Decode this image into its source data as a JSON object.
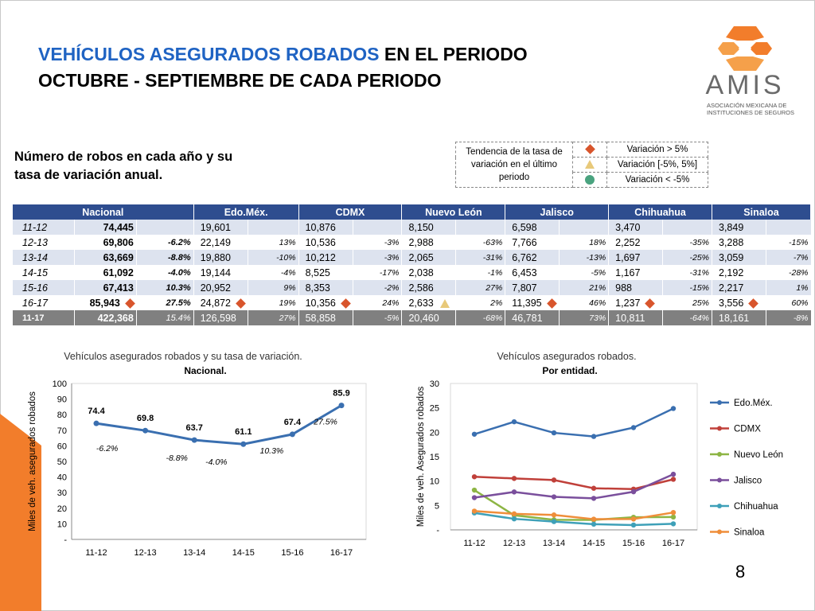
{
  "title": {
    "blue": "VEHÍCULOS ASEGURADOS ROBADOS",
    "rest": " EN EL PERIODO",
    "line2": "OCTUBRE - SEPTIEMBRE DE CADA PERIODO"
  },
  "logo": {
    "name": "AMIS",
    "sub1": "ASOCIACIÓN MEXICANA DE",
    "sub2": "INSTITUCIONES DE SEGUROS",
    "colors": [
      "#f27d2b",
      "#f5a04a"
    ]
  },
  "subtitle": {
    "line1": "Número de robos en cada año y su",
    "line2": "tasa de variación anual."
  },
  "legend": {
    "description": "Tendencia de la tasa de variación en el último periodo",
    "desc_lines": [
      "Tendencia de la tasa de",
      "variación en el último",
      "periodo"
    ],
    "items": [
      {
        "label": "Variación > 5%",
        "shape": "diamond",
        "color": "#d8552c"
      },
      {
        "label": "Variación [-5%, 5%]",
        "shape": "triangle",
        "color": "#e8c97a"
      },
      {
        "label": "Variación < -5%",
        "shape": "circle",
        "color": "#4aa37f"
      }
    ]
  },
  "table": {
    "headers": [
      "Nacional",
      "Edo.Méx.",
      "CDMX",
      "Nuevo León",
      "Jalisco",
      "Chihuahua",
      "Sinaloa"
    ],
    "rows": [
      {
        "year": "11-12",
        "nac": "74,445",
        "nac_rate": "",
        "mark": "",
        "cells": [
          [
            "19,601",
            ""
          ],
          [
            "10,876",
            ""
          ],
          [
            "8,150",
            ""
          ],
          [
            "6,598",
            ""
          ],
          [
            "3,470",
            ""
          ],
          [
            "3,849",
            ""
          ]
        ]
      },
      {
        "year": "12-13",
        "nac": "69,806",
        "nac_rate": "-6.2%",
        "mark": "",
        "cells": [
          [
            "22,149",
            "13%"
          ],
          [
            "10,536",
            "-3%"
          ],
          [
            "2,988",
            "-63%"
          ],
          [
            "7,766",
            "18%"
          ],
          [
            "2,252",
            "-35%"
          ],
          [
            "3,288",
            "-15%"
          ]
        ]
      },
      {
        "year": "13-14",
        "nac": "63,669",
        "nac_rate": "-8.8%",
        "mark": "",
        "cells": [
          [
            "19,880",
            "-10%"
          ],
          [
            "10,212",
            "-3%"
          ],
          [
            "2,065",
            "-31%"
          ],
          [
            "6,762",
            "-13%"
          ],
          [
            "1,697",
            "-25%"
          ],
          [
            "3,059",
            "-7%"
          ]
        ]
      },
      {
        "year": "14-15",
        "nac": "61,092",
        "nac_rate": "-4.0%",
        "mark": "",
        "cells": [
          [
            "19,144",
            "-4%"
          ],
          [
            "8,525",
            "-17%"
          ],
          [
            "2,038",
            "-1%"
          ],
          [
            "6,453",
            "-5%"
          ],
          [
            "1,167",
            "-31%"
          ],
          [
            "2,192",
            "-28%"
          ]
        ]
      },
      {
        "year": "15-16",
        "nac": "67,413",
        "nac_rate": "10.3%",
        "mark": "",
        "cells": [
          [
            "20,952",
            "9%"
          ],
          [
            "8,353",
            "-2%"
          ],
          [
            "2,586",
            "27%"
          ],
          [
            "7,807",
            "21%"
          ],
          [
            "988",
            "-15%"
          ],
          [
            "2,217",
            "1%"
          ]
        ]
      },
      {
        "year": "16-17",
        "nac": "85,943",
        "nac_rate": "27.5%",
        "mark": "diamond",
        "cells": [
          [
            "24,872",
            "19%"
          ],
          [
            "10,356",
            "24%"
          ],
          [
            "2,633",
            "2%"
          ],
          [
            "11,395",
            "46%"
          ],
          [
            "1,237",
            "25%"
          ],
          [
            "3,556",
            "60%"
          ]
        ],
        "marks": [
          "diamond",
          "diamond",
          "triangle",
          "diamond",
          "diamond",
          "diamond"
        ]
      },
      {
        "year": "11-17",
        "nac": "422,368",
        "nac_rate": "15.4%",
        "mark": "",
        "cells": [
          [
            "126,598",
            "27%"
          ],
          [
            "58,858",
            "-5%"
          ],
          [
            "20,460",
            "-68%"
          ],
          [
            "46,781",
            "73%"
          ],
          [
            "10,811",
            "-64%"
          ],
          [
            "18,161",
            "-8%"
          ]
        ]
      }
    ]
  },
  "chart_data": [
    {
      "type": "line",
      "title": "Vehículos asegurados robados y su tasa de variación.",
      "subtitle": "Nacional.",
      "ylabel": "Miles de veh. asegurados robados",
      "xlabel": "",
      "categories": [
        "11-12",
        "12-13",
        "13-14",
        "14-15",
        "15-16",
        "16-17"
      ],
      "series": [
        {
          "name": "",
          "values": [
            74.4,
            69.8,
            63.7,
            61.1,
            67.4,
            85.9
          ],
          "color": "#3a6fb0"
        }
      ],
      "data_labels": [
        "74.4",
        "69.8",
        "63.7",
        "61.1",
        "67.4",
        "85.9"
      ],
      "rate_labels": [
        "",
        "-6.2%",
        "-8.8%",
        "-4.0%",
        "10.3%",
        "27.5%"
      ],
      "ylim": [
        0,
        100
      ],
      "yticks": [
        "-",
        "10",
        "20",
        "30",
        "40",
        "50",
        "60",
        "70",
        "80",
        "90",
        "100"
      ],
      "grid": false
    },
    {
      "type": "line",
      "title": "Vehículos asegurados robados.",
      "subtitle": "Por entidad.",
      "ylabel": "Miles de veh. Asegurados robados",
      "xlabel": "",
      "categories": [
        "11-12",
        "12-13",
        "13-14",
        "14-15",
        "15-16",
        "16-17"
      ],
      "ylim": [
        0,
        30
      ],
      "yticks": [
        "-",
        "5",
        "10",
        "15",
        "20",
        "25",
        "30"
      ],
      "legend_position": "right",
      "grid": false,
      "series": [
        {
          "name": "Edo.Méx.",
          "values": [
            19.601,
            22.149,
            19.88,
            19.144,
            20.952,
            24.872
          ],
          "color": "#3a6fb0"
        },
        {
          "name": "CDMX",
          "values": [
            10.876,
            10.536,
            10.212,
            8.525,
            8.353,
            10.356
          ],
          "color": "#c0403a"
        },
        {
          "name": "Nuevo León",
          "values": [
            8.15,
            2.988,
            2.065,
            2.038,
            2.586,
            2.633
          ],
          "color": "#8db544"
        },
        {
          "name": "Jalisco",
          "values": [
            6.598,
            7.766,
            6.762,
            6.453,
            7.807,
            11.395
          ],
          "color": "#7a4f9c"
        },
        {
          "name": "Chihuahua",
          "values": [
            3.47,
            2.252,
            1.697,
            1.167,
            0.988,
            1.237
          ],
          "color": "#3ea0b8"
        },
        {
          "name": "Sinaloa",
          "values": [
            3.849,
            3.288,
            3.059,
            2.192,
            2.217,
            3.556
          ],
          "color": "#ef8e3a"
        }
      ]
    }
  ],
  "page_number": "8",
  "colors": {
    "title_blue": "#1f63c3",
    "header_bg": "#2e4d8f",
    "row_alt": "#dde3ef",
    "total_bg": "#808080",
    "accent_orange": "#f27d2b"
  }
}
